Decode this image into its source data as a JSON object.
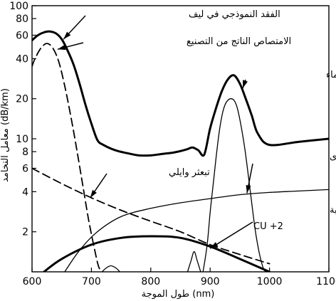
{
  "chart_data": {
    "type": "line",
    "xlabel": "طول الموجة (nm)",
    "ylabel": "معامل التخامد (dB/km)",
    "xlim": [
      600,
      1100
    ],
    "ylim": [
      1,
      100
    ],
    "y_scale": "log",
    "x_ticks": [
      "600",
      "700",
      "800",
      "900",
      "1000",
      "1100"
    ],
    "y_ticks": [
      "2",
      "4",
      "6",
      "8",
      "10",
      "20",
      "40",
      "60",
      "80",
      "100"
    ],
    "series": [
      {
        "id": "total",
        "style": "thick-solid",
        "x": [
          600,
          610,
          620,
          630,
          640,
          650,
          660,
          670,
          680,
          690,
          700,
          710,
          720,
          740,
          760,
          780,
          800,
          820,
          840,
          860,
          870,
          880,
          890,
          900,
          910,
          920,
          930,
          940,
          950,
          960,
          970,
          980,
          1000,
          1050,
          1100
        ],
        "y": [
          55,
          60,
          63,
          64,
          62,
          56,
          46,
          36,
          26,
          18,
          13,
          9.8,
          9.0,
          8.2,
          7.8,
          7.5,
          7.5,
          7.7,
          7.9,
          8.3,
          8.6,
          8.2,
          7.6,
          12,
          17,
          23,
          28,
          30,
          26,
          20,
          15,
          11,
          9,
          9.5,
          10
        ]
      },
      {
        "id": "fabrication",
        "style": "dashed",
        "x": [
          600,
          605,
          615,
          625,
          635,
          645,
          655,
          665,
          675,
          685,
          695,
          705,
          712,
          718
        ],
        "y": [
          35,
          40,
          48,
          52,
          48,
          38,
          25,
          15,
          8.5,
          4.6,
          2.5,
          1.5,
          1.1,
          1.0
        ]
      },
      {
        "id": "rayleigh",
        "style": "dashed",
        "x": [
          600,
          650,
          700,
          750,
          800,
          850,
          900,
          950,
          1000
        ],
        "y": [
          6.0,
          4.6,
          3.6,
          2.9,
          2.4,
          2.0,
          1.6,
          1.35,
          1.15
        ]
      },
      {
        "id": "water",
        "style": "thin-solid",
        "x": [
          888,
          895,
          900,
          905,
          910,
          915,
          920,
          925,
          930,
          935,
          940,
          945,
          950,
          955,
          960,
          965,
          970,
          975,
          980,
          985,
          990,
          994
        ],
        "y": [
          1.0,
          1.6,
          2.8,
          4.5,
          7.2,
          11,
          15,
          18,
          19.5,
          20,
          19.5,
          17.5,
          14,
          10.5,
          7.5,
          5,
          3.3,
          2.2,
          1.6,
          1.25,
          1.05,
          1.0
        ]
      },
      {
        "id": "impurities",
        "style": "thin-solid",
        "x": [
          655,
          680,
          710,
          750,
          800,
          850,
          900,
          950,
          1000,
          1050,
          1100
        ],
        "y": [
          1.0,
          1.45,
          2.0,
          2.6,
          3.0,
          3.3,
          3.55,
          3.8,
          3.95,
          4.05,
          4.15
        ]
      },
      {
        "id": "cu",
        "style": "thick-solid",
        "x": [
          620,
          650,
          700,
          750,
          800,
          850,
          900,
          950,
          1000
        ],
        "y": [
          1.0,
          1.25,
          1.6,
          1.8,
          1.85,
          1.8,
          1.55,
          1.25,
          1.0
        ]
      },
      {
        "id": "bump1",
        "style": "thin-solid",
        "x": [
          718,
          725,
          733,
          741,
          748
        ],
        "y": [
          1.0,
          1.07,
          1.11,
          1.07,
          1.0
        ]
      },
      {
        "id": "bump2",
        "style": "thin-solid",
        "x": [
          862,
          868,
          873,
          878,
          884
        ],
        "y": [
          1.0,
          1.22,
          1.42,
          1.22,
          1.0
        ]
      }
    ],
    "annotations": [
      {
        "id": "total",
        "text": "الفقد النموذجي في ليف"
      },
      {
        "id": "fabrication",
        "text": "الامتصاص الناتج من التصنيع"
      },
      {
        "id": "water",
        "text": "عصابة امتصاص الماء"
      },
      {
        "id": "impurities",
        "text": "امتصاص شوائب أخرى"
      },
      {
        "id": "rayleigh",
        "text": "تبعثر وايلي"
      },
      {
        "id": "cu",
        "text": "امتصاص الشائبة"
      },
      {
        "id": "cu2",
        "text": "CU +2"
      }
    ]
  }
}
